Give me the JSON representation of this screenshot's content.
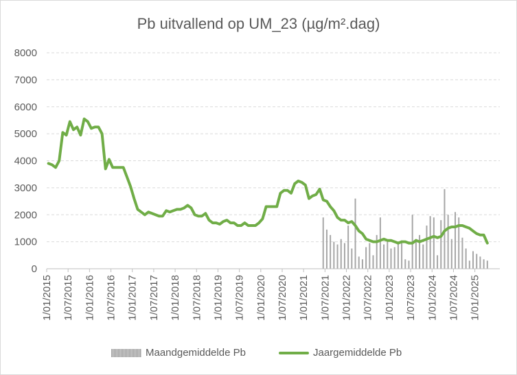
{
  "chart_data": {
    "type": "bar+line",
    "title": "Pb uitvallend op UM_23 (µg/m².dag)",
    "ylim": [
      0,
      8000
    ],
    "yticks": [
      0,
      1000,
      2000,
      3000,
      4000,
      5000,
      6000,
      7000,
      8000
    ],
    "xticks": [
      "1/01/2015",
      "1/07/2015",
      "1/01/2016",
      "1/07/2016",
      "1/01/2017",
      "1/07/2017",
      "1/01/2018",
      "1/07/2018",
      "1/01/2019",
      "1/07/2019",
      "1/01/2020",
      "1/07/2020",
      "1/01/2021",
      "1/07/2021",
      "1/01/2022",
      "1/07/2022",
      "1/01/2023",
      "1/07/2023",
      "1/01/2024",
      "1/07/2024",
      "1/01/2025"
    ],
    "grid": true,
    "legend_position": "bottom",
    "series": [
      {
        "name": "Maandgemiddelde Pb",
        "kind": "bar",
        "color": "#a6a6a6",
        "points": [
          [
            "2021-06",
            1900
          ],
          [
            "2021-07",
            1450
          ],
          [
            "2021-08",
            1250
          ],
          [
            "2021-09",
            1000
          ],
          [
            "2021-10",
            900
          ],
          [
            "2021-11",
            1100
          ],
          [
            "2021-12",
            950
          ],
          [
            "2022-01",
            1600
          ],
          [
            "2022-02",
            750
          ],
          [
            "2022-03",
            2600
          ],
          [
            "2022-04",
            450
          ],
          [
            "2022-05",
            350
          ],
          [
            "2022-06",
            800
          ],
          [
            "2022-07",
            950
          ],
          [
            "2022-08",
            500
          ],
          [
            "2022-09",
            1250
          ],
          [
            "2022-10",
            1900
          ],
          [
            "2022-11",
            900
          ],
          [
            "2022-12",
            1050
          ],
          [
            "2023-01",
            750
          ],
          [
            "2023-02",
            800
          ],
          [
            "2023-03",
            950
          ],
          [
            "2023-04",
            1050
          ],
          [
            "2023-05",
            350
          ],
          [
            "2023-06",
            300
          ],
          [
            "2023-07",
            2000
          ],
          [
            "2023-08",
            1100
          ],
          [
            "2023-09",
            1250
          ],
          [
            "2023-10",
            900
          ],
          [
            "2023-11",
            1600
          ],
          [
            "2023-12",
            1950
          ],
          [
            "2024-01",
            1900
          ],
          [
            "2024-02",
            500
          ],
          [
            "2024-03",
            1800
          ],
          [
            "2024-04",
            2950
          ],
          [
            "2024-05",
            2000
          ],
          [
            "2024-06",
            1100
          ],
          [
            "2024-07",
            2100
          ],
          [
            "2024-08",
            1900
          ],
          [
            "2024-09",
            1150
          ],
          [
            "2024-10",
            750
          ],
          [
            "2024-11",
            300
          ],
          [
            "2024-12",
            650
          ],
          [
            "2025-01",
            550
          ],
          [
            "2025-02",
            450
          ],
          [
            "2025-03",
            350
          ],
          [
            "2025-04",
            300
          ]
        ]
      },
      {
        "name": "Jaargemiddelde Pb",
        "kind": "line",
        "color": "#70ad47",
        "points": [
          [
            "2015-01",
            3900
          ],
          [
            "2015-02",
            3850
          ],
          [
            "2015-03",
            3750
          ],
          [
            "2015-04",
            4000
          ],
          [
            "2015-05",
            5050
          ],
          [
            "2015-06",
            4950
          ],
          [
            "2015-07",
            5450
          ],
          [
            "2015-08",
            5150
          ],
          [
            "2015-09",
            5250
          ],
          [
            "2015-10",
            4950
          ],
          [
            "2015-11",
            5550
          ],
          [
            "2015-12",
            5450
          ],
          [
            "2016-01",
            5200
          ],
          [
            "2016-02",
            5250
          ],
          [
            "2016-03",
            5250
          ],
          [
            "2016-04",
            5000
          ],
          [
            "2016-05",
            3700
          ],
          [
            "2016-06",
            4050
          ],
          [
            "2016-07",
            3750
          ],
          [
            "2016-08",
            3750
          ],
          [
            "2016-09",
            3750
          ],
          [
            "2016-10",
            3750
          ],
          [
            "2016-11",
            3400
          ],
          [
            "2016-12",
            3050
          ],
          [
            "2017-01",
            2600
          ],
          [
            "2017-02",
            2200
          ],
          [
            "2017-03",
            2100
          ],
          [
            "2017-04",
            2000
          ],
          [
            "2017-05",
            2100
          ],
          [
            "2017-06",
            2050
          ],
          [
            "2017-07",
            2000
          ],
          [
            "2017-08",
            1950
          ],
          [
            "2017-09",
            1950
          ],
          [
            "2017-10",
            2150
          ],
          [
            "2017-11",
            2100
          ],
          [
            "2017-12",
            2150
          ],
          [
            "2018-01",
            2200
          ],
          [
            "2018-02",
            2200
          ],
          [
            "2018-03",
            2250
          ],
          [
            "2018-04",
            2350
          ],
          [
            "2018-05",
            2250
          ],
          [
            "2018-06",
            2000
          ],
          [
            "2018-07",
            1950
          ],
          [
            "2018-08",
            1950
          ],
          [
            "2018-09",
            2050
          ],
          [
            "2018-10",
            1800
          ],
          [
            "2018-11",
            1700
          ],
          [
            "2018-12",
            1700
          ],
          [
            "2019-01",
            1650
          ],
          [
            "2019-02",
            1750
          ],
          [
            "2019-03",
            1800
          ],
          [
            "2019-04",
            1700
          ],
          [
            "2019-05",
            1700
          ],
          [
            "2019-06",
            1600
          ],
          [
            "2019-07",
            1600
          ],
          [
            "2019-08",
            1700
          ],
          [
            "2019-09",
            1600
          ],
          [
            "2019-10",
            1600
          ],
          [
            "2019-11",
            1600
          ],
          [
            "2019-12",
            1700
          ],
          [
            "2020-01",
            1850
          ],
          [
            "2020-02",
            2300
          ],
          [
            "2020-03",
            2300
          ],
          [
            "2020-04",
            2300
          ],
          [
            "2020-05",
            2300
          ],
          [
            "2020-06",
            2800
          ],
          [
            "2020-07",
            2900
          ],
          [
            "2020-08",
            2900
          ],
          [
            "2020-09",
            2800
          ],
          [
            "2020-10",
            3150
          ],
          [
            "2020-11",
            3250
          ],
          [
            "2020-12",
            3200
          ],
          [
            "2021-01",
            3100
          ],
          [
            "2021-02",
            2600
          ],
          [
            "2021-03",
            2700
          ],
          [
            "2021-04",
            2750
          ],
          [
            "2021-05",
            2950
          ],
          [
            "2021-06",
            2550
          ],
          [
            "2021-07",
            2500
          ],
          [
            "2021-08",
            2300
          ],
          [
            "2021-09",
            2150
          ],
          [
            "2021-10",
            1900
          ],
          [
            "2021-11",
            1800
          ],
          [
            "2021-12",
            1800
          ],
          [
            "2022-01",
            1700
          ],
          [
            "2022-02",
            1750
          ],
          [
            "2022-03",
            1600
          ],
          [
            "2022-04",
            1400
          ],
          [
            "2022-05",
            1300
          ],
          [
            "2022-06",
            1100
          ],
          [
            "2022-07",
            1050
          ],
          [
            "2022-08",
            1000
          ],
          [
            "2022-09",
            1000
          ],
          [
            "2022-10",
            1050
          ],
          [
            "2022-11",
            1100
          ],
          [
            "2022-12",
            1050
          ],
          [
            "2023-01",
            1050
          ],
          [
            "2023-02",
            1000
          ],
          [
            "2023-03",
            950
          ],
          [
            "2023-04",
            1000
          ],
          [
            "2023-05",
            1000
          ],
          [
            "2023-06",
            950
          ],
          [
            "2023-07",
            950
          ],
          [
            "2023-08",
            1050
          ],
          [
            "2023-09",
            1000
          ],
          [
            "2023-10",
            1050
          ],
          [
            "2023-11",
            1100
          ],
          [
            "2023-12",
            1150
          ],
          [
            "2024-01",
            1200
          ],
          [
            "2024-02",
            1150
          ],
          [
            "2024-03",
            1200
          ],
          [
            "2024-04",
            1400
          ],
          [
            "2024-05",
            1500
          ],
          [
            "2024-06",
            1550
          ],
          [
            "2024-07",
            1550
          ],
          [
            "2024-08",
            1600
          ],
          [
            "2024-09",
            1600
          ],
          [
            "2024-10",
            1550
          ],
          [
            "2024-11",
            1500
          ],
          [
            "2024-12",
            1400
          ],
          [
            "2025-01",
            1300
          ],
          [
            "2025-02",
            1250
          ],
          [
            "2025-03",
            1250
          ],
          [
            "2025-04",
            950
          ]
        ]
      }
    ]
  }
}
